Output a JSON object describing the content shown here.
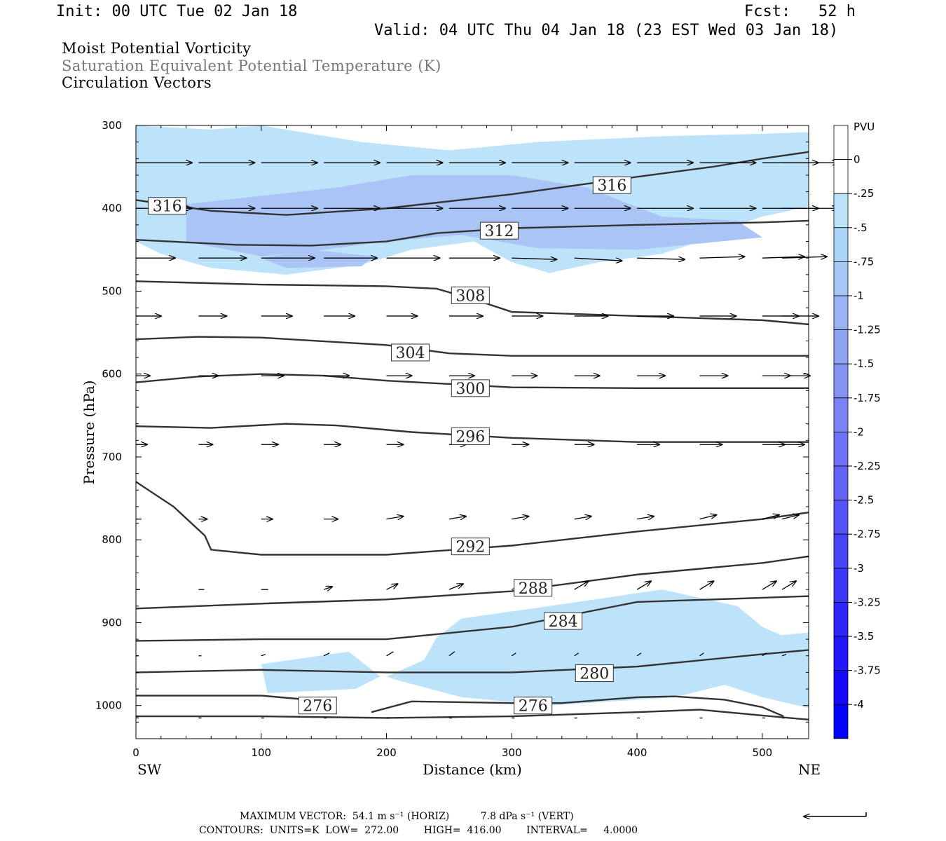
{
  "header": {
    "init": "Init: 00 UTC Tue 02 Jan 18",
    "fcst": "Fcst:   52 h",
    "valid": "Valid: 04 UTC Thu 04 Jan 18 (23 EST Wed 03 Jan 18)"
  },
  "fields": {
    "line1": "Moist Potential Vorticity",
    "line2": "Saturation Equivalent Potential Temperature (K)",
    "line3": "Circulation Vectors"
  },
  "colors": {
    "shade1": "#bde3fb",
    "shade2": "#aac4f6",
    "contour": "#333333"
  },
  "chart_data": {
    "type": "area",
    "title": "",
    "xlabel": "Distance (km)",
    "ylabel": "Pressure (hPa)",
    "x_end_labels": [
      "SW",
      "NE"
    ],
    "xlim": [
      0,
      537
    ],
    "ylim": [
      1040,
      300
    ],
    "xticks": [
      0,
      100,
      200,
      300,
      400,
      500
    ],
    "yticks": [
      300,
      400,
      500,
      600,
      700,
      800,
      900,
      1000
    ],
    "colorbar": {
      "unit": "PVU",
      "labels": [
        "0",
        "-.25",
        "-.5",
        "-.75",
        "-1",
        "-1.25",
        "-1.5",
        "-1.75",
        "-2",
        "-2.25",
        "-2.5",
        "-2.75",
        "-3",
        "-3.25",
        "-3.5",
        "-3.75",
        "-4"
      ],
      "colors": [
        "#ffffff",
        "#ffffff",
        "#bde3fb",
        "#aad7f9",
        "#a6c6f5",
        "#99b4f4",
        "#8ea3f4",
        "#8593f5",
        "#7a82f5",
        "#6f71f6",
        "#6462f7",
        "#5753f8",
        "#4a44f9",
        "#3c35fa",
        "#2f26fb",
        "#2217fc",
        "#1508fd",
        "#0000ff"
      ]
    },
    "shaded_regions": [
      {
        "level": "-.25",
        "points": [
          [
            0,
            300
          ],
          [
            60,
            305
          ],
          [
            100,
            300
          ],
          [
            180,
            320
          ],
          [
            250,
            330
          ],
          [
            320,
            320
          ],
          [
            420,
            313
          ],
          [
            500,
            310
          ],
          [
            537,
            308
          ],
          [
            537,
            398
          ],
          [
            500,
            410
          ],
          [
            470,
            425
          ],
          [
            450,
            440
          ],
          [
            420,
            455
          ],
          [
            370,
            465
          ],
          [
            330,
            478
          ],
          [
            300,
            465
          ],
          [
            270,
            440
          ],
          [
            220,
            450
          ],
          [
            180,
            468
          ],
          [
            120,
            480
          ],
          [
            60,
            472
          ],
          [
            20,
            455
          ],
          [
            0,
            440
          ]
        ]
      },
      {
        "level": "-.5",
        "points": [
          [
            40,
            395
          ],
          [
            100,
            385
          ],
          [
            160,
            375
          ],
          [
            220,
            360
          ],
          [
            300,
            360
          ],
          [
            360,
            375
          ],
          [
            420,
            410
          ],
          [
            480,
            415
          ],
          [
            500,
            435
          ],
          [
            400,
            450
          ],
          [
            320,
            448
          ],
          [
            260,
            432
          ],
          [
            200,
            440
          ],
          [
            150,
            450
          ],
          [
            100,
            458
          ],
          [
            40,
            440
          ]
        ]
      },
      {
        "level": "-.5",
        "points": [
          [
            100,
            460
          ],
          [
            140,
            450
          ],
          [
            190,
            458
          ],
          [
            180,
            470
          ],
          [
            120,
            472
          ]
        ]
      },
      {
        "level": "-.25",
        "points": [
          [
            240,
            918
          ],
          [
            260,
            895
          ],
          [
            330,
            880
          ],
          [
            420,
            860
          ],
          [
            480,
            880
          ],
          [
            500,
            905
          ],
          [
            515,
            915
          ],
          [
            537,
            912
          ],
          [
            537,
            1003
          ],
          [
            500,
            990
          ],
          [
            470,
            975
          ],
          [
            430,
            990
          ],
          [
            330,
            1000
          ],
          [
            260,
            990
          ],
          [
            240,
            982
          ],
          [
            210,
            970
          ],
          [
            200,
            965
          ],
          [
            230,
            945
          ]
        ]
      },
      {
        "level": "-.25",
        "points": [
          [
            100,
            950
          ],
          [
            170,
            935
          ],
          [
            195,
            965
          ],
          [
            175,
            980
          ],
          [
            105,
            985
          ]
        ]
      }
    ],
    "contours": [
      {
        "label": "316",
        "label_at": [
          380,
          372
        ],
        "points": [
          [
            0,
            390
          ],
          [
            60,
            403
          ],
          [
            120,
            408
          ],
          [
            200,
            400
          ],
          [
            300,
            383
          ],
          [
            400,
            362
          ],
          [
            460,
            350
          ],
          [
            500,
            340
          ],
          [
            537,
            332
          ]
        ]
      },
      {
        "label": "316",
        "label_at": [
          25,
          397
        ],
        "points": []
      },
      {
        "label": "312",
        "label_at": [
          290,
          427
        ],
        "points": [
          [
            0,
            438
          ],
          [
            80,
            444
          ],
          [
            140,
            445
          ],
          [
            200,
            440
          ],
          [
            240,
            430
          ],
          [
            300,
            424
          ],
          [
            400,
            420
          ],
          [
            500,
            417
          ],
          [
            537,
            415
          ]
        ]
      },
      {
        "label": "308",
        "label_at": [
          267,
          505
        ],
        "points": [
          [
            0,
            488
          ],
          [
            100,
            492
          ],
          [
            200,
            494
          ],
          [
            240,
            497
          ],
          [
            270,
            510
          ],
          [
            300,
            525
          ],
          [
            400,
            530
          ],
          [
            500,
            535
          ],
          [
            537,
            540
          ]
        ]
      },
      {
        "label": "304",
        "label_at": [
          219,
          574
        ],
        "points": [
          [
            0,
            558
          ],
          [
            50,
            555
          ],
          [
            100,
            556
          ],
          [
            200,
            565
          ],
          [
            250,
            575
          ],
          [
            300,
            578
          ],
          [
            400,
            578
          ],
          [
            500,
            578
          ],
          [
            537,
            578
          ]
        ]
      },
      {
        "label": "300",
        "label_at": [
          267,
          617
        ],
        "points": [
          [
            0,
            610
          ],
          [
            50,
            603
          ],
          [
            100,
            600
          ],
          [
            150,
            602
          ],
          [
            200,
            608
          ],
          [
            300,
            616
          ],
          [
            400,
            617
          ],
          [
            537,
            617
          ]
        ]
      },
      {
        "label": "296",
        "label_at": [
          267,
          675
        ],
        "points": [
          [
            0,
            663
          ],
          [
            60,
            665
          ],
          [
            120,
            660
          ],
          [
            160,
            662
          ],
          [
            220,
            670
          ],
          [
            300,
            677
          ],
          [
            400,
            682
          ],
          [
            537,
            682
          ]
        ]
      },
      {
        "label": "292",
        "label_at": [
          267,
          808
        ],
        "points": [
          [
            0,
            730
          ],
          [
            30,
            760
          ],
          [
            55,
            795
          ],
          [
            60,
            812
          ],
          [
            100,
            818
          ],
          [
            200,
            818
          ],
          [
            300,
            807
          ],
          [
            400,
            790
          ],
          [
            500,
            775
          ],
          [
            537,
            767
          ]
        ]
      },
      {
        "label": "288",
        "label_at": [
          317,
          858
        ],
        "points": [
          [
            0,
            883
          ],
          [
            100,
            877
          ],
          [
            200,
            872
          ],
          [
            300,
            862
          ],
          [
            400,
            842
          ],
          [
            500,
            828
          ],
          [
            537,
            820
          ]
        ]
      },
      {
        "label": "284",
        "label_at": [
          341,
          898
        ],
        "points": [
          [
            0,
            922
          ],
          [
            100,
            920
          ],
          [
            200,
            920
          ],
          [
            300,
            905
          ],
          [
            400,
            875
          ],
          [
            500,
            870
          ],
          [
            537,
            868
          ]
        ]
      },
      {
        "label": "280",
        "label_at": [
          366,
          961
        ],
        "points": [
          [
            0,
            960
          ],
          [
            100,
            957
          ],
          [
            200,
            960
          ],
          [
            300,
            960
          ],
          [
            400,
            953
          ],
          [
            500,
            938
          ],
          [
            537,
            933
          ]
        ]
      },
      {
        "label": "276",
        "label_at": [
          145,
          1000
        ],
        "points": [
          [
            0,
            988
          ],
          [
            100,
            988
          ],
          [
            130,
            992
          ]
        ]
      },
      {
        "label": "276",
        "label_at": [
          317,
          1000
        ],
        "points": [
          [
            188,
            1008
          ],
          [
            220,
            995
          ],
          [
            300,
            997
          ],
          [
            340,
            997
          ],
          [
            400,
            990
          ],
          [
            430,
            989
          ],
          [
            470,
            993
          ],
          [
            500,
            1002
          ],
          [
            517,
            1013
          ]
        ]
      },
      {
        "label": "",
        "label_at": null,
        "points": [
          [
            0,
            1013
          ],
          [
            100,
            1013
          ],
          [
            200,
            1015
          ],
          [
            300,
            1013
          ],
          [
            400,
            1008
          ],
          [
            450,
            1005
          ],
          [
            500,
            1012
          ],
          [
            537,
            1017
          ]
        ]
      }
    ],
    "vector_rows": [
      {
        "p": 345,
        "len": [
          40,
          40,
          40,
          40,
          40,
          40,
          40,
          40,
          40,
          40,
          40,
          40
        ],
        "dp": [
          0,
          0,
          0,
          0,
          0,
          0,
          0,
          0,
          0,
          0,
          0,
          0
        ]
      },
      {
        "p": 400,
        "len": [
          40,
          40,
          40,
          40,
          40,
          40,
          40,
          40,
          40,
          40,
          40,
          40
        ],
        "dp": [
          0,
          0,
          0,
          0,
          0,
          0,
          0,
          0,
          0,
          0,
          0,
          0
        ]
      },
      {
        "p": 460,
        "len": [
          28,
          34,
          38,
          38,
          38,
          36,
          32,
          34,
          34,
          32,
          30,
          32
        ],
        "dp": [
          0,
          0,
          0,
          0,
          0,
          0,
          1,
          2,
          1,
          -1,
          -1,
          -1
        ]
      },
      {
        "p": 530,
        "len": [
          18,
          20,
          22,
          22,
          22,
          24,
          22,
          24,
          26,
          26,
          26,
          26
        ],
        "dp": [
          0,
          0,
          0,
          0,
          0,
          0,
          0,
          0,
          0,
          0,
          0,
          0
        ]
      },
      {
        "p": 602,
        "len": [
          10,
          14,
          16,
          18,
          18,
          18,
          18,
          18,
          20,
          20,
          20,
          20
        ],
        "dp": [
          0,
          0,
          0,
          0,
          0,
          0,
          0,
          0,
          0,
          0,
          0,
          0
        ]
      },
      {
        "p": 685,
        "len": [
          8,
          10,
          12,
          12,
          12,
          12,
          12,
          14,
          16,
          16,
          16,
          16
        ],
        "dp": [
          0,
          0,
          0,
          0,
          0,
          0,
          0,
          0,
          0,
          0,
          0,
          0
        ]
      },
      {
        "p": 775,
        "len": [
          4,
          6,
          8,
          10,
          12,
          12,
          12,
          12,
          12,
          12,
          12,
          12
        ],
        "dp": [
          0,
          0,
          0,
          0,
          -2,
          -2,
          -2,
          -2,
          -2,
          -3,
          -3,
          -3
        ]
      },
      {
        "p": 860,
        "len": [
          3,
          4,
          5,
          6,
          8,
          10,
          10,
          10,
          10,
          10,
          10,
          10
        ],
        "dp": [
          0,
          0,
          0,
          -2,
          -4,
          -4,
          -4,
          -6,
          -6,
          -6,
          -6,
          -6
        ]
      },
      {
        "p": 940,
        "len": [
          2,
          2,
          3,
          4,
          5,
          4,
          3,
          3,
          3,
          3,
          3,
          3
        ],
        "dp": [
          0,
          0,
          -1,
          -2,
          -3,
          -3,
          -2,
          -2,
          -2,
          -2,
          -2,
          -1
        ]
      },
      {
        "p": 1015,
        "len": [
          2,
          2,
          2,
          2,
          2,
          2,
          2,
          2,
          2,
          2,
          2,
          2
        ],
        "dp": [
          0,
          0,
          0,
          0,
          0,
          0,
          0,
          0,
          0,
          0,
          0,
          0
        ]
      }
    ],
    "vector_x": [
      0,
      50,
      100,
      150,
      200,
      250,
      300,
      350,
      400,
      450,
      500,
      537
    ]
  },
  "footer": {
    "line1": "MAXIMUM VECTOR:  54.1 m s⁻¹ (HORIZ)          7.8 dPa s⁻¹ (VERT)",
    "line2": "CONTOURS:  UNITS=K  LOW=  272.00        HIGH=  416.00        INTERVAL=     4.0000"
  }
}
